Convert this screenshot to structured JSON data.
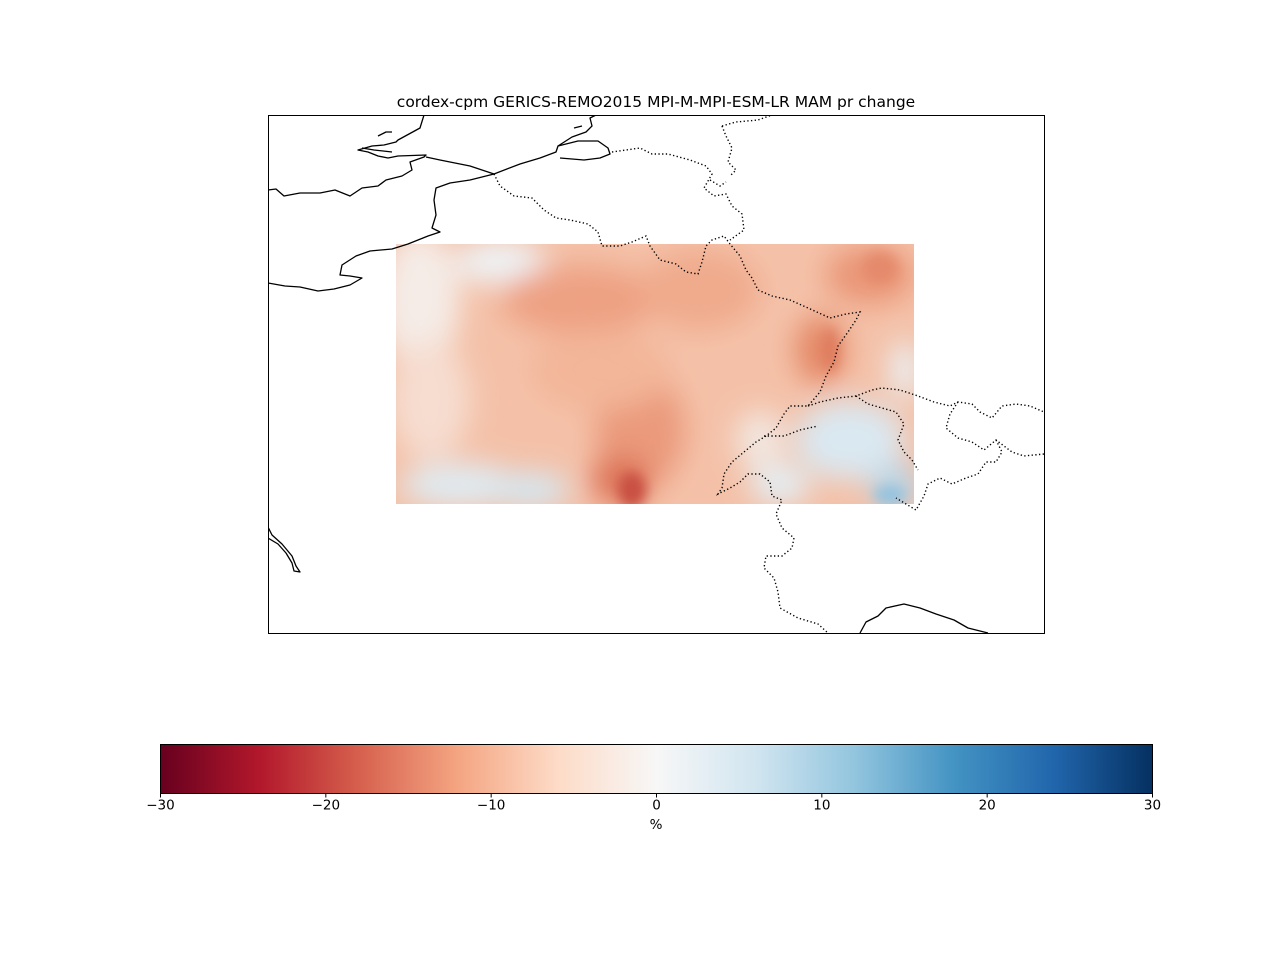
{
  "title": "cordex-cpm GERICS-REMO2015 MPI-M-MPI-ESM-LR MAM pr change",
  "colorbar": {
    "label": "%",
    "ticks": [
      "−30",
      "−20",
      "−10",
      "0",
      "10",
      "20",
      "30"
    ],
    "range": [
      -30,
      30
    ],
    "colormap": "RdBu",
    "stops": [
      "#67001f",
      "#b2182b",
      "#d6604d",
      "#f4a582",
      "#fddbc7",
      "#f7f7f7",
      "#d1e5f0",
      "#92c5de",
      "#4393c3",
      "#2166ac",
      "#053061"
    ]
  },
  "map": {
    "field": "MAM pr change",
    "units": "%",
    "region": "France / Benelux / Switzerland",
    "dominant_value_range": [
      -14,
      4
    ],
    "borders": "dotted",
    "coastlines": "solid"
  }
}
